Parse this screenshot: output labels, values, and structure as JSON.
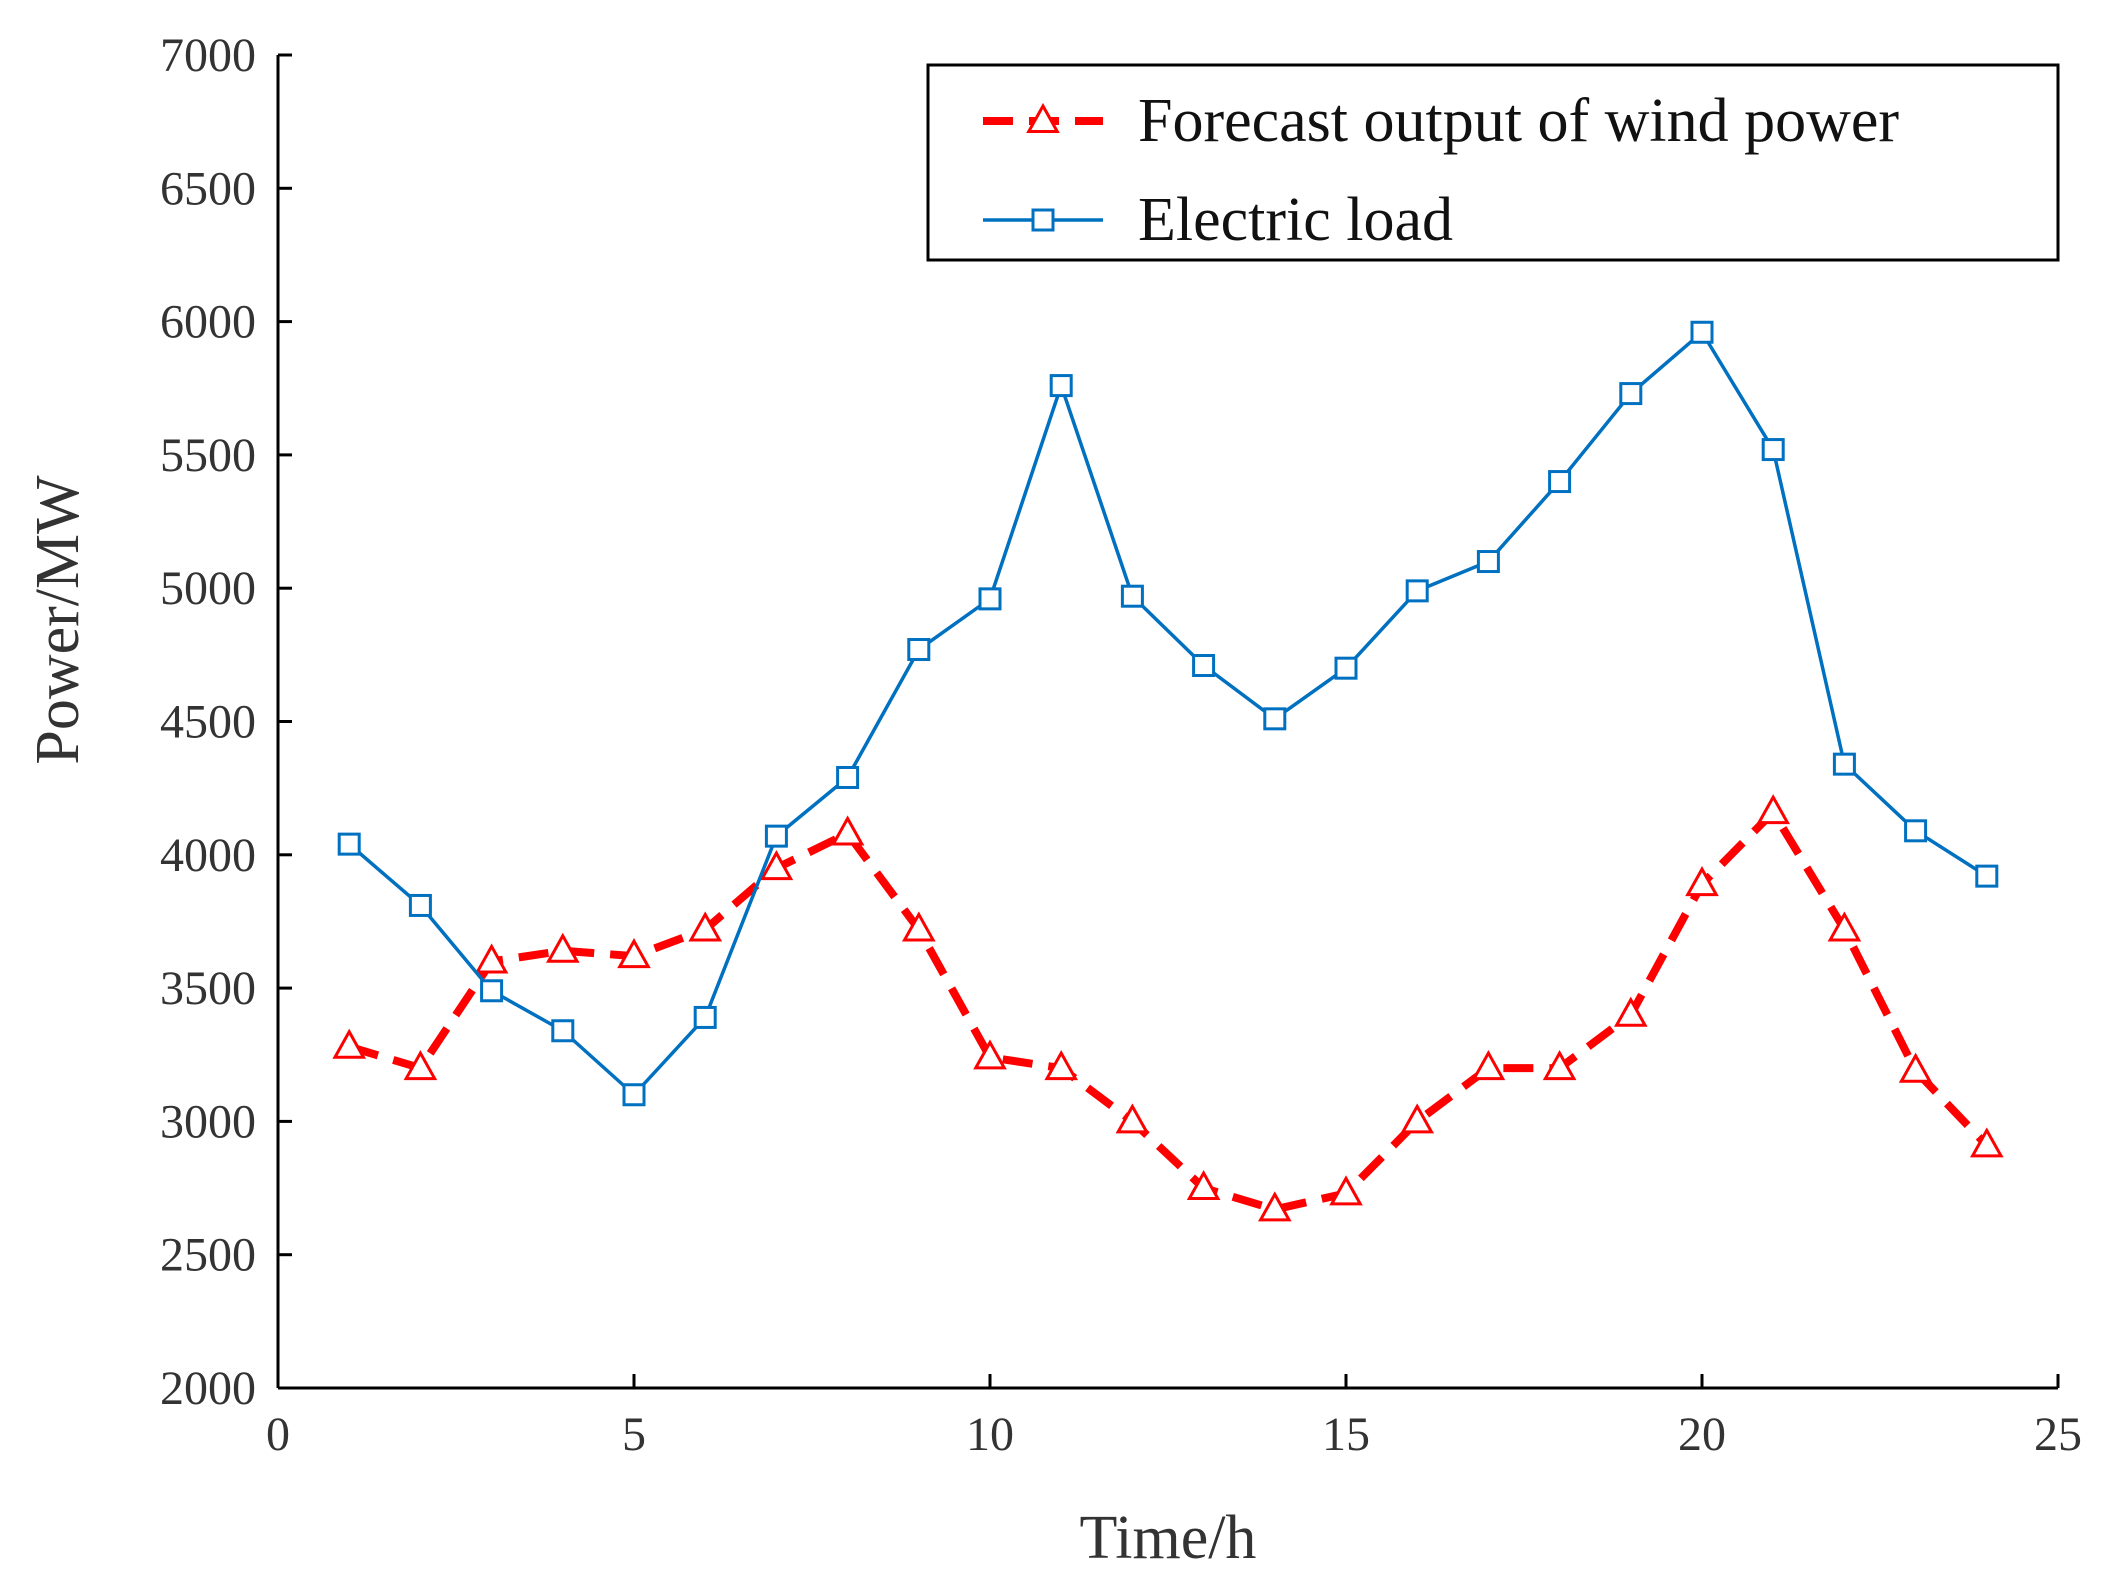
{
  "chart_data": {
    "type": "line",
    "title": "",
    "xlabel": "Time/h",
    "ylabel": "Power/MW",
    "xlim": [
      0,
      25
    ],
    "ylim": [
      2000,
      7000
    ],
    "xticks": [
      "0",
      "5",
      "10",
      "15",
      "20",
      "25"
    ],
    "yticks": [
      "2000",
      "2500",
      "3000",
      "3500",
      "4000",
      "4500",
      "5000",
      "5500",
      "6000",
      "6500",
      "7000"
    ],
    "grid": false,
    "legend_position": "top-right",
    "series": [
      {
        "name": "Forecast output of wind power",
        "color": "#ff0000",
        "line_style": "dashed",
        "marker": "triangle",
        "x": [
          1,
          2,
          3,
          4,
          5,
          6,
          7,
          8,
          9,
          10,
          11,
          12,
          13,
          14,
          15,
          16,
          17,
          18,
          19,
          20,
          21,
          22,
          23,
          24
        ],
        "values": [
          3280,
          3200,
          3600,
          3640,
          3620,
          3720,
          3950,
          4080,
          3720,
          3240,
          3200,
          3000,
          2750,
          2670,
          2730,
          3000,
          3200,
          3200,
          3400,
          3890,
          4160,
          3720,
          3190,
          2910
        ]
      },
      {
        "name": "Electric load",
        "color": "#0070c0",
        "line_style": "solid",
        "marker": "square",
        "x": [
          1,
          2,
          3,
          4,
          5,
          6,
          7,
          8,
          9,
          10,
          11,
          12,
          13,
          14,
          15,
          16,
          17,
          18,
          19,
          20,
          21,
          22,
          23,
          24
        ],
        "values": [
          4040,
          3810,
          3490,
          3340,
          3100,
          3390,
          4070,
          4290,
          4770,
          4960,
          5760,
          4970,
          4710,
          4510,
          4700,
          4990,
          5100,
          5400,
          5730,
          5960,
          5520,
          4340,
          4090,
          3920
        ]
      }
    ]
  }
}
